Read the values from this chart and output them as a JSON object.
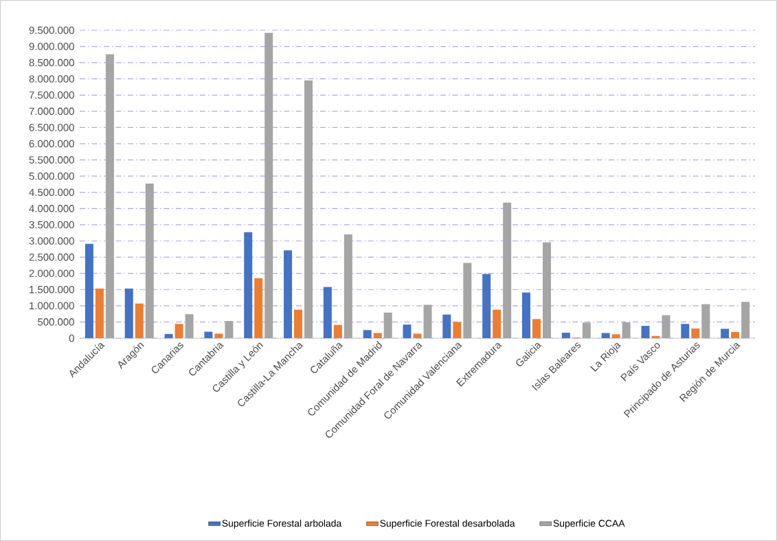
{
  "chart_data": {
    "type": "bar",
    "categories": [
      "Andalucía",
      "Aragón",
      "Canarias",
      "Cantabria",
      "Castilla y León",
      "Castilla-La Mancha",
      "Cataluña",
      "Comunidad de Madrid",
      "Comunidad Foral de Navarra",
      "Comunidad Valenciana",
      "Extremadura",
      "Galicia",
      "Islas Baleares",
      "La Rioja",
      "País Vasco",
      "Principado de Asturias",
      "Región de Murcia"
    ],
    "series": [
      {
        "name": "Superficie Forestal arbolada",
        "color": "#4472c4",
        "values": [
          2910000,
          1530000,
          130000,
          200000,
          3270000,
          2710000,
          1580000,
          250000,
          420000,
          730000,
          1980000,
          1410000,
          170000,
          160000,
          380000,
          440000,
          290000
        ]
      },
      {
        "name": "Superficie Forestal desarbolada",
        "color": "#ed7d31",
        "values": [
          1530000,
          1070000,
          440000,
          140000,
          1850000,
          880000,
          410000,
          160000,
          140000,
          500000,
          880000,
          590000,
          20000,
          120000,
          70000,
          300000,
          190000
        ]
      },
      {
        "name": "Superficie CCAA",
        "color": "#a5a5a5",
        "values": [
          8760000,
          4770000,
          740000,
          530000,
          9420000,
          7950000,
          3200000,
          790000,
          1030000,
          2320000,
          4180000,
          2960000,
          480000,
          490000,
          710000,
          1050000,
          1120000
        ]
      }
    ],
    "ylim": [
      0,
      9500000
    ],
    "yticks": [
      {
        "value": 0,
        "label": "0"
      },
      {
        "value": 500000,
        "label": "500.000"
      },
      {
        "value": 1000000,
        "label": "1.000.000"
      },
      {
        "value": 1500000,
        "label": "1.500.000"
      },
      {
        "value": 2000000,
        "label": "2.000.000"
      },
      {
        "value": 2500000,
        "label": "2.500.000"
      },
      {
        "value": 3000000,
        "label": "3.000.000"
      },
      {
        "value": 3500000,
        "label": "3.500.000"
      },
      {
        "value": 4000000,
        "label": "4.000.000"
      },
      {
        "value": 4500000,
        "label": "4.500.000"
      },
      {
        "value": 5000000,
        "label": "5.000.000"
      },
      {
        "value": 5500000,
        "label": "5.500.000"
      },
      {
        "value": 6000000,
        "label": "6.000.000"
      },
      {
        "value": 6500000,
        "label": "6.500.000"
      },
      {
        "value": 7000000,
        "label": "7.000.000"
      },
      {
        "value": 7500000,
        "label": "7.500.000"
      },
      {
        "value": 8000000,
        "label": "8.000.000"
      },
      {
        "value": 8500000,
        "label": "8.500.000"
      },
      {
        "value": 9000000,
        "label": "9.000.000"
      },
      {
        "value": 9500000,
        "label": "9.500.000"
      }
    ],
    "grid": "y",
    "legend": "bottom"
  }
}
